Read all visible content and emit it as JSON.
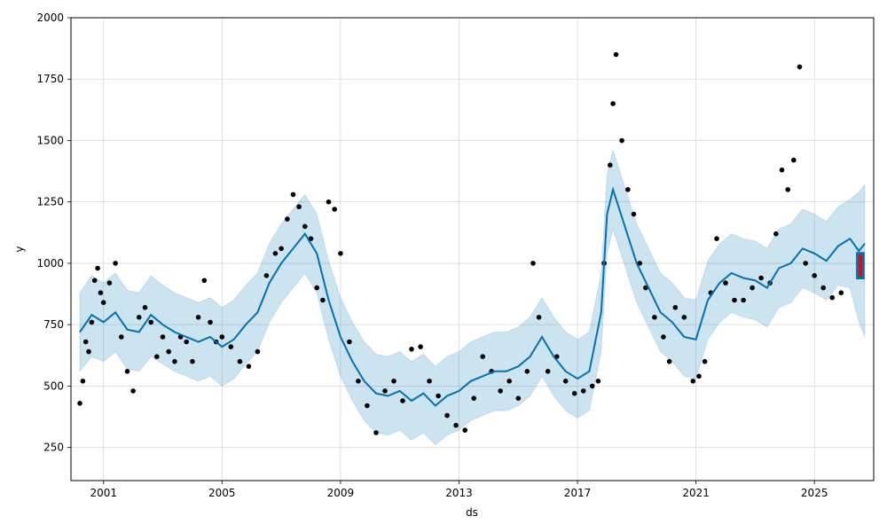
{
  "chart_data": {
    "type": "scatter",
    "xlabel": "ds",
    "ylabel": "y",
    "xlim": [
      1999.9,
      2027.0
    ],
    "ylim": [
      115,
      2000
    ],
    "grid": true,
    "x_ticks": [
      {
        "value": 2001,
        "label": "2001"
      },
      {
        "value": 2005,
        "label": "2005"
      },
      {
        "value": 2009,
        "label": "2009"
      },
      {
        "value": 2013,
        "label": "2013"
      },
      {
        "value": 2017,
        "label": "2017"
      },
      {
        "value": 2021,
        "label": "2021"
      },
      {
        "value": 2025,
        "label": "2025"
      }
    ],
    "y_ticks": [
      {
        "value": 250,
        "label": "250"
      },
      {
        "value": 500,
        "label": "500"
      },
      {
        "value": 750,
        "label": "750"
      },
      {
        "value": 1000,
        "label": "1000"
      },
      {
        "value": 1250,
        "label": "1250"
      },
      {
        "value": 1500,
        "label": "1500"
      },
      {
        "value": 1750,
        "label": "1750"
      },
      {
        "value": 2000,
        "label": "2000"
      }
    ],
    "colors": {
      "observed": "#000000",
      "forecast": "#0072B2",
      "interval": "#0072B2",
      "highlight": "#ff0000"
    },
    "observed": {
      "x": [
        2000.2,
        2000.3,
        2000.4,
        2000.5,
        2000.6,
        2000.7,
        2000.8,
        2000.9,
        2001.0,
        2001.2,
        2001.4,
        2001.6,
        2001.8,
        2002.0,
        2002.2,
        2002.4,
        2002.6,
        2002.8,
        2003.0,
        2003.2,
        2003.4,
        2003.6,
        2003.8,
        2004.0,
        2004.2,
        2004.4,
        2004.6,
        2004.8,
        2005.0,
        2005.3,
        2005.6,
        2005.9,
        2006.2,
        2006.5,
        2006.8,
        2007.0,
        2007.2,
        2007.4,
        2007.6,
        2007.8,
        2008.0,
        2008.2,
        2008.4,
        2008.6,
        2008.8,
        2009.0,
        2009.3,
        2009.6,
        2009.9,
        2010.2,
        2010.5,
        2010.8,
        2011.1,
        2011.4,
        2011.7,
        2012.0,
        2012.3,
        2012.6,
        2012.9,
        2013.2,
        2013.5,
        2013.8,
        2014.1,
        2014.4,
        2014.7,
        2015.0,
        2015.3,
        2015.5,
        2015.7,
        2016.0,
        2016.3,
        2016.6,
        2016.9,
        2017.2,
        2017.5,
        2017.7,
        2017.9,
        2018.1,
        2018.2,
        2018.3,
        2018.5,
        2018.7,
        2018.9,
        2019.1,
        2019.3,
        2019.6,
        2019.9,
        2020.1,
        2020.3,
        2020.6,
        2020.9,
        2021.1,
        2021.3,
        2021.5,
        2021.7,
        2022.0,
        2022.3,
        2022.6,
        2022.9,
        2023.2,
        2023.5,
        2023.7,
        2023.9,
        2024.1,
        2024.3,
        2024.5,
        2024.7,
        2025.0,
        2025.3,
        2025.6,
        2025.9
      ],
      "y": [
        430,
        520,
        680,
        640,
        760,
        930,
        980,
        880,
        840,
        920,
        1000,
        700,
        560,
        480,
        780,
        820,
        760,
        620,
        700,
        640,
        600,
        700,
        680,
        600,
        780,
        930,
        760,
        680,
        700,
        660,
        600,
        580,
        640,
        950,
        1040,
        1060,
        1180,
        1280,
        1230,
        1150,
        1100,
        900,
        850,
        1250,
        1220,
        1040,
        680,
        520,
        420,
        310,
        480,
        520,
        440,
        650,
        660,
        520,
        460,
        380,
        340,
        320,
        450,
        620,
        560,
        480,
        520,
        450,
        560,
        1000,
        780,
        560,
        620,
        520,
        470,
        480,
        500,
        520,
        1000,
        1400,
        1650,
        1850,
        1500,
        1300,
        1200,
        1000,
        900,
        780,
        700,
        600,
        820,
        780,
        520,
        540,
        600,
        880,
        1100,
        920,
        850,
        850,
        900,
        940,
        920,
        1120,
        1380,
        1300,
        1420,
        1800,
        1000,
        950,
        900,
        860,
        880
      ],
      "size": 2.8
    },
    "forecast": {
      "x": [
        2000.2,
        2000.6,
        2001.0,
        2001.4,
        2001.8,
        2002.2,
        2002.6,
        2003.0,
        2003.4,
        2003.8,
        2004.2,
        2004.6,
        2005.0,
        2005.4,
        2005.8,
        2006.2,
        2006.6,
        2007.0,
        2007.4,
        2007.8,
        2008.2,
        2008.6,
        2009.0,
        2009.4,
        2009.8,
        2010.2,
        2010.6,
        2011.0,
        2011.4,
        2011.8,
        2012.2,
        2012.6,
        2013.0,
        2013.4,
        2013.8,
        2014.2,
        2014.6,
        2015.0,
        2015.4,
        2015.8,
        2016.2,
        2016.6,
        2017.0,
        2017.4,
        2017.8,
        2018.0,
        2018.2,
        2018.6,
        2019.0,
        2019.4,
        2019.8,
        2020.2,
        2020.6,
        2021.0,
        2021.4,
        2021.8,
        2022.2,
        2022.6,
        2023.0,
        2023.4,
        2023.8,
        2024.2,
        2024.6,
        2025.0,
        2025.4,
        2025.8,
        2026.2,
        2026.5,
        2026.7
      ],
      "y": [
        720,
        790,
        760,
        800,
        730,
        720,
        790,
        750,
        720,
        700,
        680,
        700,
        660,
        690,
        750,
        800,
        920,
        1000,
        1060,
        1120,
        1040,
        850,
        700,
        600,
        520,
        470,
        460,
        480,
        440,
        470,
        420,
        460,
        480,
        520,
        540,
        560,
        560,
        580,
        620,
        700,
        620,
        560,
        530,
        560,
        800,
        1200,
        1300,
        1150,
        1000,
        900,
        800,
        760,
        700,
        690,
        850,
        920,
        960,
        940,
        930,
        900,
        980,
        1000,
        1060,
        1040,
        1010,
        1070,
        1100,
        1050,
        1080
      ],
      "lower": [
        560,
        620,
        600,
        640,
        570,
        560,
        620,
        590,
        560,
        540,
        520,
        540,
        500,
        530,
        590,
        640,
        760,
        840,
        900,
        960,
        880,
        690,
        540,
        440,
        360,
        310,
        300,
        320,
        280,
        310,
        260,
        300,
        320,
        360,
        380,
        400,
        400,
        420,
        460,
        540,
        460,
        400,
        370,
        400,
        640,
        1040,
        1140,
        990,
        840,
        740,
        640,
        600,
        540,
        530,
        690,
        760,
        800,
        780,
        770,
        740,
        820,
        840,
        900,
        880,
        850,
        910,
        900,
        760,
        700
      ],
      "upper": [
        880,
        950,
        920,
        960,
        890,
        880,
        950,
        910,
        880,
        860,
        840,
        860,
        820,
        850,
        910,
        960,
        1080,
        1160,
        1220,
        1280,
        1200,
        1010,
        860,
        760,
        680,
        630,
        620,
        640,
        600,
        630,
        580,
        620,
        640,
        680,
        700,
        720,
        720,
        740,
        780,
        860,
        780,
        720,
        690,
        720,
        960,
        1360,
        1460,
        1310,
        1160,
        1060,
        960,
        920,
        860,
        850,
        1010,
        1080,
        1120,
        1100,
        1090,
        1060,
        1140,
        1160,
        1220,
        1200,
        1170,
        1230,
        1260,
        1290,
        1320
      ]
    },
    "highlight": {
      "x": [
        2026.45,
        2026.65,
        2026.65,
        2026.45
      ],
      "y": [
        940,
        940,
        1040,
        1040
      ]
    }
  }
}
